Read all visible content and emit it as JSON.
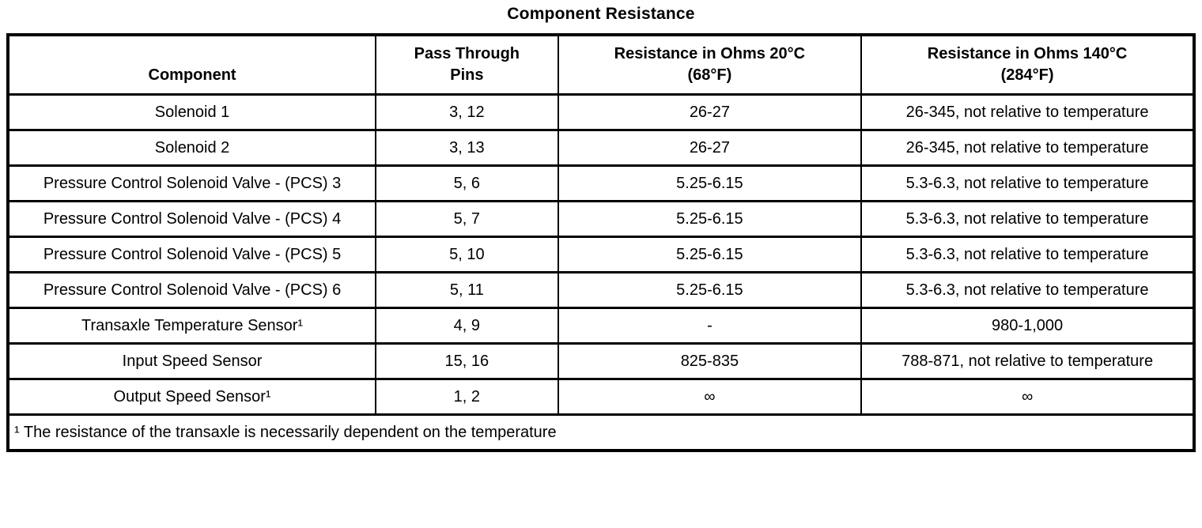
{
  "title": "Component Resistance",
  "table": {
    "columns": [
      {
        "id": "component",
        "lines": [
          "Component"
        ]
      },
      {
        "id": "pass-through-pins",
        "lines": [
          "Pass Through",
          "Pins"
        ]
      },
      {
        "id": "resistance-20c",
        "lines": [
          "Resistance in Ohms 20°C",
          "(68°F)"
        ]
      },
      {
        "id": "resistance-140c",
        "lines": [
          "Resistance in Ohms 140°C",
          "(284°F)"
        ]
      }
    ],
    "rows": [
      {
        "cells": [
          "Solenoid 1",
          "3, 12",
          "26-27",
          "26-345, not relative to temperature"
        ]
      },
      {
        "cells": [
          "Solenoid 2",
          "3, 13",
          "26-27",
          "26-345, not relative to temperature"
        ]
      },
      {
        "cells": [
          "Pressure Control Solenoid Valve - (PCS) 3",
          "5, 6",
          "5.25-6.15",
          "5.3-6.3, not relative to temperature"
        ]
      },
      {
        "cells": [
          "Pressure Control Solenoid Valve - (PCS) 4",
          "5, 7",
          "5.25-6.15",
          "5.3-6.3, not relative to temperature"
        ]
      },
      {
        "cells": [
          "Pressure Control Solenoid Valve - (PCS) 5",
          "5, 10",
          "5.25-6.15",
          "5.3-6.3, not relative to temperature"
        ]
      },
      {
        "cells": [
          "Pressure Control Solenoid Valve - (PCS) 6",
          "5, 11",
          "5.25-6.15",
          "5.3-6.3, not relative to temperature"
        ]
      },
      {
        "cells": [
          "Transaxle Temperature Sensor¹",
          "4, 9",
          "-",
          "980-1,000"
        ]
      },
      {
        "cells": [
          "Input Speed Sensor",
          "15, 16",
          "825-835",
          "788-871, not relative to temperature"
        ]
      },
      {
        "cells": [
          "Output Speed Sensor¹",
          "1, 2",
          "∞",
          "∞"
        ]
      }
    ],
    "footnote": "¹ The resistance of the transaxle is necessarily dependent on the temperature"
  }
}
